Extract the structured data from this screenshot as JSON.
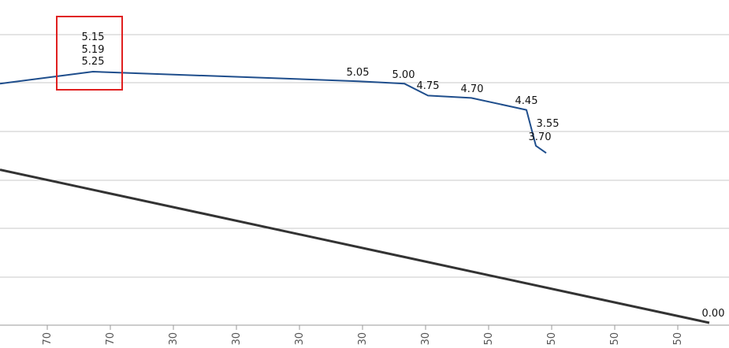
{
  "chart_data": {
    "type": "line",
    "x_tick_labels": [
      "70",
      "70",
      "30",
      "30",
      "30",
      "30",
      "30",
      "50",
      "50",
      "50",
      "50"
    ],
    "y_grid_lines": 7,
    "grid": true,
    "series": [
      {
        "color": "#1f4e8c",
        "points": [
          {
            "x": 0,
            "y": 5.0
          },
          {
            "x": 118,
            "y": 5.25
          },
          {
            "x": 455,
            "y": 5.05
          },
          {
            "x": 513,
            "y": 5.0
          },
          {
            "x": 543,
            "y": 4.75
          },
          {
            "x": 598,
            "y": 4.7
          },
          {
            "x": 668,
            "y": 4.45
          },
          {
            "x": 680,
            "y": 3.7
          },
          {
            "x": 693,
            "y": 3.55
          }
        ]
      },
      {
        "color": "#333333",
        "points": [
          {
            "x": 0,
            "y": 3.2
          },
          {
            "x": 900,
            "y": 0.0
          }
        ]
      }
    ],
    "data_labels": [
      {
        "id": "lbl-515",
        "text": "5.15"
      },
      {
        "id": "lbl-519",
        "text": "5.19"
      },
      {
        "id": "lbl-525",
        "text": "5.25"
      },
      {
        "id": "lbl-505",
        "text": "5.05"
      },
      {
        "id": "lbl-500",
        "text": "5.00"
      },
      {
        "id": "lbl-475",
        "text": "4.75"
      },
      {
        "id": "lbl-470",
        "text": "4.70"
      },
      {
        "id": "lbl-445",
        "text": "4.45"
      },
      {
        "id": "lbl-355",
        "text": "3.55"
      },
      {
        "id": "lbl-370",
        "text": "3.70"
      },
      {
        "id": "lbl-000",
        "text": "0.00"
      }
    ],
    "annotation": {
      "type": "highlight-box",
      "color": "#e02020"
    }
  }
}
